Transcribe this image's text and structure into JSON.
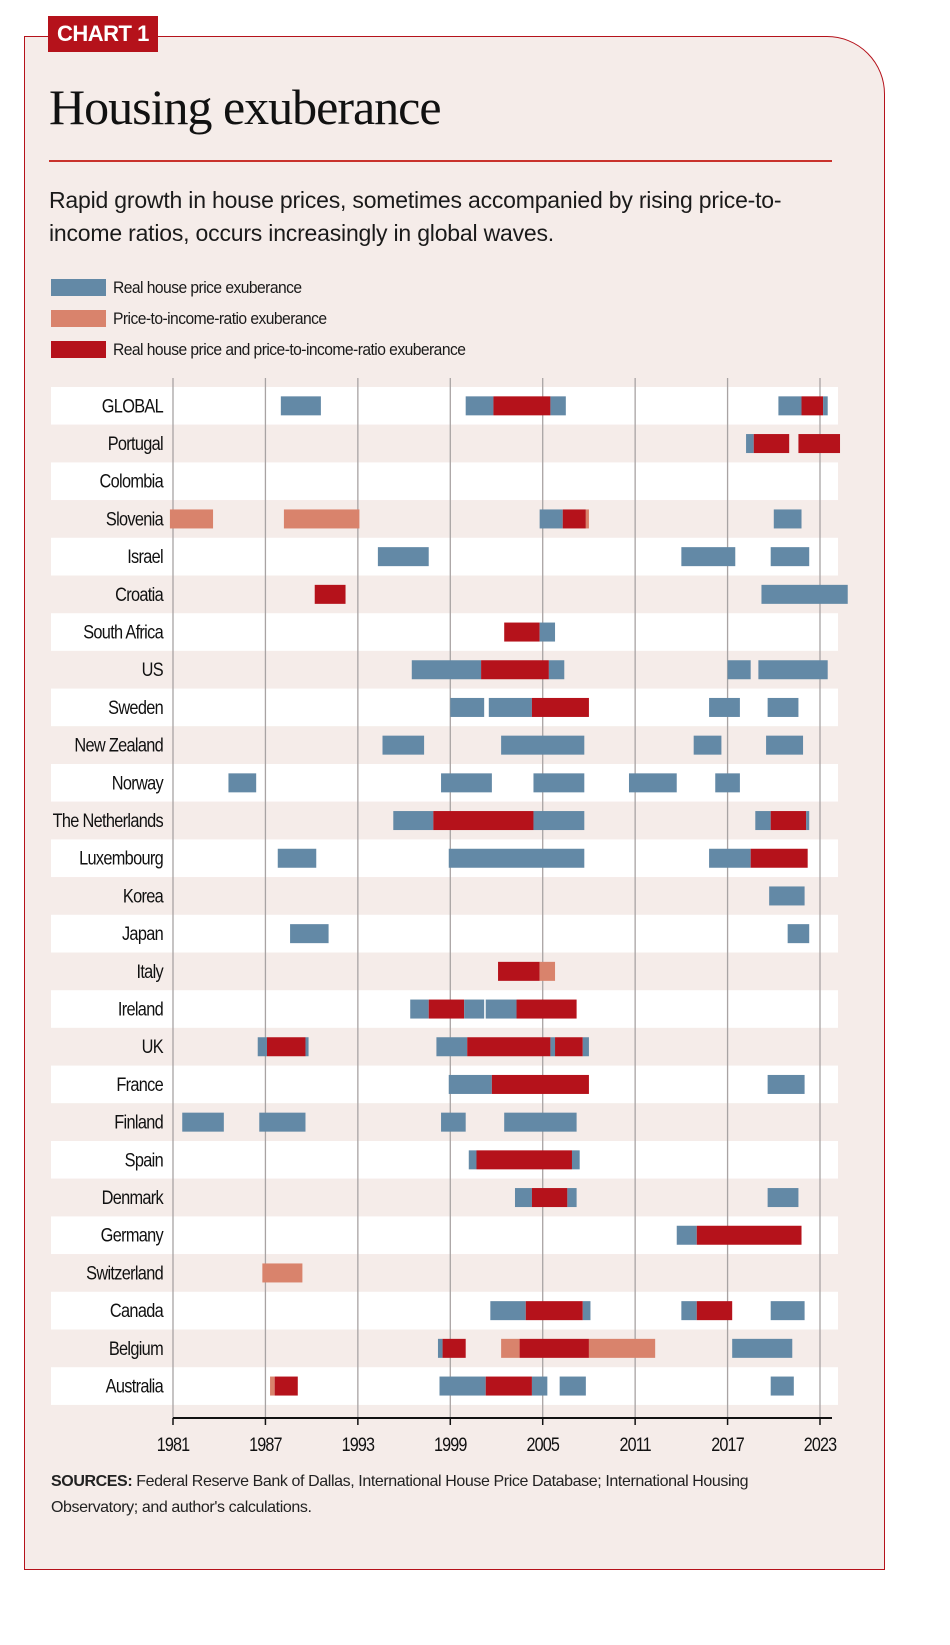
{
  "tag": "CHART 1",
  "title": "Housing exuberance",
  "subtitle": "Rapid growth in house prices, sometimes accompanied by rising price-to-income ratios, occurs increasingly in global waves.",
  "legend": [
    {
      "key": "real",
      "label": "Real house price exuberance",
      "color": "#6389a6"
    },
    {
      "key": "pti",
      "label": "Price-to-income-ratio exuberance",
      "color": "#d9836c"
    },
    {
      "key": "both",
      "label": "Real house price and price-to-income-ratio exuberance",
      "color": "#b5121b"
    }
  ],
  "sources_label": "SOURCES:",
  "sources_text": " Federal Reserve Bank of Dallas, International House Price Database; International Housing Observatory; and author's calculations.",
  "chart_data": {
    "type": "bar",
    "subtype": "horizontal-timeline",
    "title": "Housing exuberance",
    "xlabel": "",
    "ylabel": "",
    "xlim": [
      1981,
      2024
    ],
    "xticks": [
      1981,
      1987,
      1993,
      1999,
      2005,
      2011,
      2017,
      2023
    ],
    "grid": true,
    "legend_position": "top-left",
    "colors": {
      "real": "#6389a6",
      "pti": "#d9836c",
      "both": "#b5121b"
    },
    "rows": [
      {
        "name": "GLOBAL",
        "segments": [
          [
            "real",
            1988.0,
            1990.6
          ],
          [
            "real",
            2000.0,
            2001.8
          ],
          [
            "both",
            2001.8,
            2005.5
          ],
          [
            "real",
            2005.5,
            2006.5
          ],
          [
            "real",
            2020.3,
            2021.8
          ],
          [
            "both",
            2021.8,
            2023.2
          ],
          [
            "real",
            2023.2,
            2023.5
          ]
        ]
      },
      {
        "name": "Portugal",
        "segments": [
          [
            "real",
            2018.2,
            2018.7
          ],
          [
            "both",
            2018.7,
            2021.0
          ],
          [
            "both",
            2021.6,
            2024.3
          ]
        ]
      },
      {
        "name": "Colombia",
        "segments": []
      },
      {
        "name": "Slovenia",
        "segments": [
          [
            "pti",
            1980.8,
            1983.6
          ],
          [
            "pti",
            1988.2,
            1993.1
          ],
          [
            "real",
            2004.8,
            2006.3
          ],
          [
            "both",
            2006.3,
            2007.8
          ],
          [
            "pti",
            2007.8,
            2008.0
          ],
          [
            "real",
            2020.0,
            2021.8
          ]
        ]
      },
      {
        "name": "Israel",
        "segments": [
          [
            "real",
            1994.3,
            1997.6
          ],
          [
            "real",
            2014.0,
            2017.5
          ],
          [
            "real",
            2019.8,
            2022.3
          ]
        ]
      },
      {
        "name": "Croatia",
        "segments": [
          [
            "both",
            1990.2,
            1992.2
          ],
          [
            "real",
            2019.2,
            2024.8
          ]
        ]
      },
      {
        "name": "South Africa",
        "segments": [
          [
            "both",
            2002.5,
            2004.8
          ],
          [
            "real",
            2004.8,
            2005.8
          ]
        ]
      },
      {
        "name": "US",
        "segments": [
          [
            "real",
            1996.5,
            2001.0
          ],
          [
            "both",
            2001.0,
            2005.4
          ],
          [
            "real",
            2005.4,
            2006.4
          ],
          [
            "real",
            2017.0,
            2018.5
          ],
          [
            "real",
            2019.0,
            2023.5
          ]
        ]
      },
      {
        "name": "Sweden",
        "segments": [
          [
            "real",
            1999.0,
            2001.2
          ],
          [
            "real",
            2001.5,
            2004.3
          ],
          [
            "both",
            2004.3,
            2008.0
          ],
          [
            "real",
            2015.8,
            2017.8
          ],
          [
            "real",
            2019.6,
            2021.6
          ]
        ]
      },
      {
        "name": "New Zealand",
        "segments": [
          [
            "real",
            1994.6,
            1997.3
          ],
          [
            "real",
            2002.3,
            2007.7
          ],
          [
            "real",
            2014.8,
            2016.6
          ],
          [
            "real",
            2019.5,
            2021.9
          ]
        ]
      },
      {
        "name": "Norway",
        "segments": [
          [
            "real",
            1984.6,
            1986.4
          ],
          [
            "real",
            1998.4,
            2001.7
          ],
          [
            "real",
            2004.4,
            2007.7
          ],
          [
            "real",
            2010.6,
            2013.7
          ],
          [
            "real",
            2016.2,
            2017.8
          ]
        ]
      },
      {
        "name": "The Netherlands",
        "segments": [
          [
            "real",
            1995.3,
            1997.9
          ],
          [
            "both",
            1997.9,
            2004.4
          ],
          [
            "real",
            2004.4,
            2007.7
          ],
          [
            "real",
            2018.8,
            2019.8
          ],
          [
            "both",
            2019.8,
            2022.1
          ],
          [
            "real",
            2022.1,
            2022.3
          ]
        ]
      },
      {
        "name": "Luxembourg",
        "segments": [
          [
            "real",
            1987.8,
            1990.3
          ],
          [
            "real",
            1998.9,
            2007.7
          ],
          [
            "real",
            2015.8,
            2018.5
          ],
          [
            "both",
            2018.5,
            2022.2
          ]
        ]
      },
      {
        "name": "Korea",
        "segments": [
          [
            "real",
            2019.7,
            2022.0
          ]
        ]
      },
      {
        "name": "Japan",
        "segments": [
          [
            "real",
            1988.6,
            1991.1
          ],
          [
            "real",
            2020.9,
            2022.3
          ]
        ]
      },
      {
        "name": "Italy",
        "segments": [
          [
            "both",
            2002.1,
            2004.8
          ],
          [
            "pti",
            2004.8,
            2005.8
          ]
        ]
      },
      {
        "name": "Ireland",
        "segments": [
          [
            "real",
            1996.4,
            1997.6
          ],
          [
            "both",
            1997.6,
            1999.9
          ],
          [
            "real",
            1999.9,
            2001.2
          ],
          [
            "real",
            2001.3,
            2003.3
          ],
          [
            "both",
            2003.3,
            2007.2
          ]
        ]
      },
      {
        "name": "UK",
        "segments": [
          [
            "real",
            1986.5,
            1987.1
          ],
          [
            "both",
            1987.1,
            1989.6
          ],
          [
            "real",
            1989.6,
            1989.8
          ],
          [
            "real",
            1998.1,
            2000.1
          ],
          [
            "both",
            2000.1,
            2005.5
          ],
          [
            "real",
            2005.5,
            2005.8
          ],
          [
            "both",
            2005.8,
            2007.6
          ],
          [
            "real",
            2007.6,
            2008.0
          ]
        ]
      },
      {
        "name": "France",
        "segments": [
          [
            "real",
            1998.9,
            2001.7
          ],
          [
            "both",
            2001.7,
            2008.0
          ],
          [
            "real",
            2019.6,
            2022.0
          ]
        ]
      },
      {
        "name": "Finland",
        "segments": [
          [
            "real",
            1981.6,
            1984.3
          ],
          [
            "real",
            1986.6,
            1989.6
          ],
          [
            "real",
            1998.4,
            2000.0
          ],
          [
            "real",
            2002.5,
            2007.2
          ]
        ]
      },
      {
        "name": "Spain",
        "segments": [
          [
            "real",
            2000.2,
            2000.7
          ],
          [
            "both",
            2000.7,
            2006.9
          ],
          [
            "real",
            2006.9,
            2007.4
          ]
        ]
      },
      {
        "name": "Denmark",
        "segments": [
          [
            "real",
            2003.2,
            2004.3
          ],
          [
            "both",
            2004.3,
            2006.6
          ],
          [
            "real",
            2006.6,
            2007.2
          ],
          [
            "real",
            2019.6,
            2021.6
          ]
        ]
      },
      {
        "name": "Germany",
        "segments": [
          [
            "real",
            2013.7,
            2015.0
          ],
          [
            "both",
            2015.0,
            2021.8
          ]
        ]
      },
      {
        "name": "Switzerland",
        "segments": [
          [
            "pti",
            1986.8,
            1989.4
          ]
        ]
      },
      {
        "name": "Canada",
        "segments": [
          [
            "real",
            2001.6,
            2003.9
          ],
          [
            "both",
            2003.9,
            2007.6
          ],
          [
            "real",
            2007.6,
            2008.1
          ],
          [
            "real",
            2014.0,
            2015.0
          ],
          [
            "both",
            2015.0,
            2017.3
          ],
          [
            "real",
            2019.8,
            2022.0
          ]
        ]
      },
      {
        "name": "Belgium",
        "segments": [
          [
            "real",
            1998.2,
            1998.5
          ],
          [
            "both",
            1998.5,
            2000.0
          ],
          [
            "pti",
            2002.3,
            2003.5
          ],
          [
            "both",
            2003.5,
            2008.0
          ],
          [
            "pti",
            2008.0,
            2012.3
          ],
          [
            "real",
            2017.3,
            2021.2
          ]
        ]
      },
      {
        "name": "Australia",
        "segments": [
          [
            "pti",
            1987.3,
            1987.6
          ],
          [
            "both",
            1987.6,
            1989.1
          ],
          [
            "real",
            1998.3,
            2001.3
          ],
          [
            "both",
            2001.3,
            2004.3
          ],
          [
            "real",
            2004.3,
            2005.3
          ],
          [
            "real",
            2006.1,
            2007.8
          ],
          [
            "real",
            2019.8,
            2021.3
          ]
        ]
      }
    ]
  }
}
